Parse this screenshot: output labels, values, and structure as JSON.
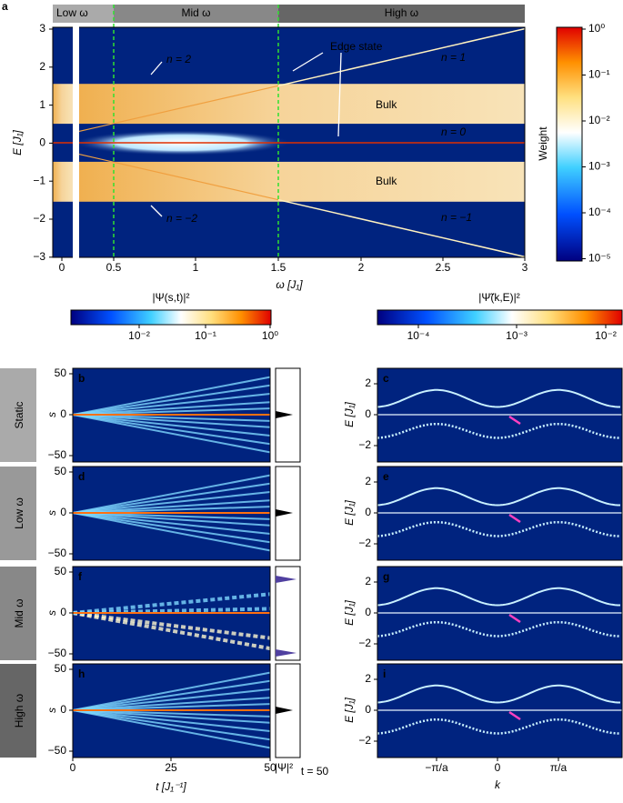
{
  "panel_a": {
    "label": "a",
    "regimes": [
      "Low ω",
      "Mid ω",
      "High ω"
    ],
    "xlabel": "ω [J₁]",
    "ylabel": "E [J₁]",
    "xticks": [
      "0",
      "0.5",
      "1",
      "1.5",
      "2",
      "2.5",
      "3"
    ],
    "yticks": [
      "3",
      "2",
      "1",
      "0",
      "−1",
      "−2",
      "−3"
    ],
    "annotations": [
      "n = 2",
      "Edge state",
      "n = 1",
      "Bulk",
      "n = 0",
      "Bulk",
      "n = −2",
      "n = −1"
    ],
    "colorbar": {
      "label": "Weight",
      "ticks": [
        "10⁰",
        "10⁻¹",
        "10⁻²",
        "10⁻³",
        "10⁻⁴",
        "10⁻⁵"
      ]
    }
  },
  "left": {
    "title": "|Ψ(s,t)|²",
    "colorbar_ticks": [
      "10⁻²",
      "10⁻¹",
      "10⁰"
    ],
    "panels": [
      "b",
      "d",
      "f",
      "h"
    ],
    "ylabel": "s",
    "yticks": [
      "50",
      "0",
      "−50"
    ],
    "xticks": [
      "0",
      "25",
      "50"
    ],
    "xlabel": "t [J₁⁻¹]",
    "side_label": "|Ψ|²",
    "side_sub": "t = 50"
  },
  "right": {
    "title": "|Ψ̃(k,E)|²",
    "colorbar_ticks": [
      "10⁻⁴",
      "10⁻³",
      "10⁻²"
    ],
    "panels": [
      "c",
      "e",
      "g",
      "i"
    ],
    "ylabel": "E [J₁]",
    "yticks": [
      "2",
      "0",
      "−2"
    ],
    "xticks": [
      "−π/a",
      "0",
      "π/a"
    ],
    "xlabel": "k"
  },
  "rows": [
    "Static",
    "Low ω",
    "Mid ω",
    "High ω"
  ]
}
